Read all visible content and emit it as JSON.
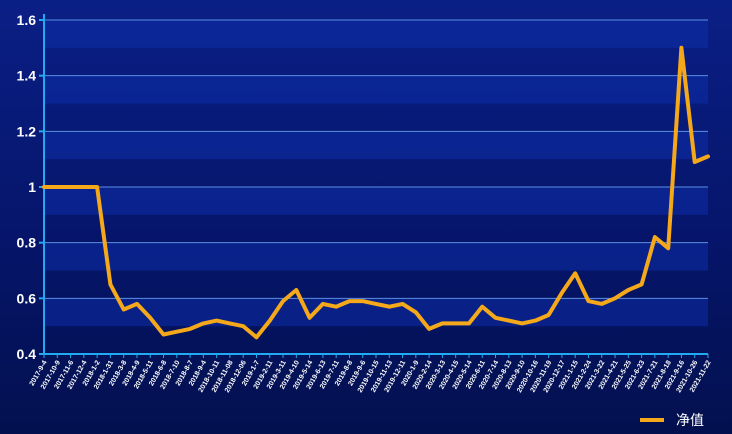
{
  "chart_data": {
    "type": "line",
    "title": "",
    "xlabel": "",
    "ylabel": "",
    "ylim": [
      0.4,
      1.6
    ],
    "y_ticks": [
      0.4,
      0.6,
      0.8,
      1,
      1.2,
      1.4,
      1.6
    ],
    "y_tick_labels": [
      "0.4",
      "0.6",
      "0.8",
      "1",
      "1.2",
      "1.4",
      "1.6"
    ],
    "grid": "horizontal",
    "legend_position": "bottom-right",
    "colors": {
      "line": "#f5a91a",
      "grid": "#5b8fe0",
      "axis": "#22a9f0",
      "band": "#0c2ea8"
    },
    "categories": [
      "2017-9-4",
      "2017-10-9",
      "2017-11-6",
      "2017-12-4",
      "2018-1-2",
      "2018-1-31",
      "2018-3-8",
      "2018-4-9",
      "2018-5-11",
      "2018-6-8",
      "2018-7-10",
      "2018-8-7",
      "2018-9-4",
      "2018-10-11",
      "2018-11-08",
      "2018-12-06",
      "2019-1-7",
      "2019-2-11",
      "2019-3-11",
      "2019-4-10",
      "2019-5-14",
      "2019-6-13",
      "2019-7-11",
      "2019-8-8",
      "2019-9-6",
      "2019-10-15",
      "2019-11-13",
      "2019-12-11",
      "2020-1-9",
      "2020-2-14",
      "2020-3-13",
      "2020-4-15",
      "2020-5-14",
      "2020-6-11",
      "2020-7-14",
      "2020-8-13",
      "2020-9-10",
      "2020-10-16",
      "2020-11-19",
      "2020-12-17",
      "2021-1-15",
      "2021-2-24",
      "2021-3-22",
      "2021-4-21",
      "2021-5-25",
      "2021-6-23",
      "2021-7-21",
      "2021-8-18",
      "2021-9-16",
      "2021-10-26",
      "2021-11-22"
    ],
    "series": [
      {
        "name": "净值",
        "values": [
          1.0,
          1.0,
          1.0,
          1.0,
          1.0,
          0.65,
          0.56,
          0.58,
          0.53,
          0.47,
          0.48,
          0.49,
          0.51,
          0.52,
          0.51,
          0.5,
          0.46,
          0.52,
          0.59,
          0.63,
          0.53,
          0.58,
          0.57,
          0.59,
          0.59,
          0.58,
          0.57,
          0.58,
          0.55,
          0.49,
          0.51,
          0.51,
          0.51,
          0.57,
          0.53,
          0.52,
          0.51,
          0.52,
          0.54,
          0.62,
          0.69,
          0.59,
          0.58,
          0.6,
          0.63,
          0.65,
          0.82,
          0.78,
          1.5,
          1.09,
          1.11
        ]
      }
    ]
  }
}
